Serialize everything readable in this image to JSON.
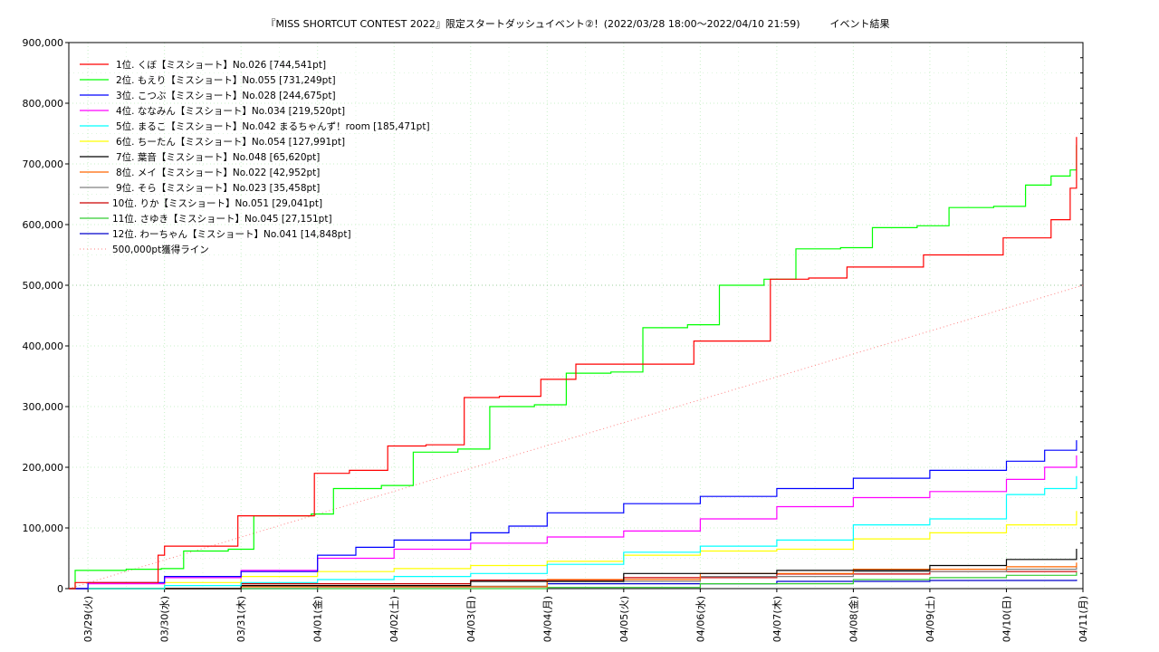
{
  "chart_data": {
    "type": "line",
    "title": "『MISS SHORTCUT CONTEST 2022』限定スタートダッシュイベント②！(2022/03/28 18:00〜2022/04/10 21:59)　　　イベント結果",
    "x_ticks": [
      "03/29(火)",
      "03/30(水)",
      "03/31(木)",
      "04/01(金)",
      "04/02(土)",
      "04/03(日)",
      "04/04(月)",
      "04/05(火)",
      "04/06(水)",
      "04/07(木)",
      "04/08(金)",
      "04/09(土)",
      "04/10(日)",
      "04/11(月)"
    ],
    "y_ticks": [
      "0",
      "100,000",
      "200,000",
      "300,000",
      "400,000",
      "500,000",
      "600,000",
      "700,000",
      "800,000",
      "900,000"
    ],
    "xlim": [
      "2022/03/28 18:00",
      "2022/04/11 00:00"
    ],
    "ylim": [
      0,
      900000
    ],
    "grid": true,
    "legend_position": "top-left",
    "target_line": {
      "name": "500,000pt獲得ライン",
      "value": 500000,
      "color": "#ff8080"
    },
    "series": [
      {
        "name": "1位. くぼ【ミスショート】No.026 [744,541pt]",
        "color": "#ff0000",
        "x": [
          "03/28 18:00",
          "03/28 20:00",
          "03/29 12:00",
          "03/29 22:00",
          "03/30 00:00",
          "03/30 22:00",
          "03/30 23:00",
          "03/31 10:00",
          "03/31 22:00",
          "03/31 23:00",
          "04/01 10:00",
          "04/01 21:00",
          "04/01 22:00",
          "04/02 10:00",
          "04/02 21:00",
          "04/02 22:00",
          "04/03 09:00",
          "04/03 21:00",
          "04/03 22:00",
          "04/04 09:00",
          "04/04 21:00",
          "04/04 22:00",
          "04/05 09:00",
          "04/05 21:00",
          "04/05 22:00",
          "04/06 10:00",
          "04/06 21:00",
          "04/06 22:00",
          "04/07 10:00",
          "04/07 21:00",
          "04/07 22:00",
          "04/08 10:00",
          "04/08 21:00",
          "04/08 22:00",
          "04/09 10:00",
          "04/09 21:00",
          "04/09 23:00",
          "04/10 10:00",
          "04/10 14:00",
          "04/10 18:00",
          "04/10 20:00",
          "04/10 21:59"
        ],
        "y": [
          0,
          10000,
          10000,
          55000,
          70000,
          70000,
          120000,
          120000,
          120000,
          190000,
          195000,
          195000,
          235000,
          237000,
          237000,
          315000,
          317000,
          317000,
          345000,
          370000,
          370000,
          370000,
          370000,
          370000,
          408000,
          408000,
          408000,
          510000,
          512000,
          512000,
          530000,
          530000,
          530000,
          550000,
          550000,
          550000,
          578000,
          578000,
          608000,
          608000,
          660000,
          744541
        ]
      },
      {
        "name": "2位. もえり【ミスショート】No.055 [731,249pt]",
        "color": "#00ff00",
        "x": [
          "03/28 18:00",
          "03/28 20:00",
          "03/29 12:00",
          "03/29 23:00",
          "03/30 06:00",
          "03/30 20:00",
          "03/31 04:00",
          "03/31 22:00",
          "04/01 05:00",
          "04/01 20:00",
          "04/02 06:00",
          "04/02 20:00",
          "04/03 06:00",
          "04/03 20:00",
          "04/04 06:00",
          "04/04 20:00",
          "04/05 06:00",
          "04/05 20:00",
          "04/06 06:00",
          "04/06 20:00",
          "04/07 06:00",
          "04/07 20:00",
          "04/08 06:00",
          "04/08 20:00",
          "04/09 06:00",
          "04/09 20:00",
          "04/10 06:00",
          "04/10 14:00",
          "04/10 20:00",
          "04/10 21:59"
        ],
        "y": [
          0,
          30000,
          32000,
          33000,
          62000,
          65000,
          120000,
          123000,
          165000,
          170000,
          225000,
          230000,
          300000,
          303000,
          355000,
          357000,
          430000,
          435000,
          500000,
          510000,
          560000,
          562000,
          595000,
          598000,
          628000,
          630000,
          665000,
          680000,
          690000,
          731249
        ]
      },
      {
        "name": "3位. こつぶ【ミスショート】No.028 [244,675pt]",
        "color": "#0000ff",
        "x": [
          "03/28 18:00",
          "03/29 00:00",
          "03/30 00:00",
          "03/31 00:00",
          "04/01 00:00",
          "04/01 12:00",
          "04/02 00:00",
          "04/03 00:00",
          "04/03 12:00",
          "04/04 00:00",
          "04/05 00:00",
          "04/06 00:00",
          "04/07 00:00",
          "04/08 00:00",
          "04/09 00:00",
          "04/10 00:00",
          "04/10 12:00",
          "04/10 21:59"
        ],
        "y": [
          0,
          10000,
          20000,
          28000,
          55000,
          68000,
          80000,
          92000,
          103000,
          125000,
          140000,
          152000,
          165000,
          182000,
          195000,
          210000,
          228000,
          244675
        ]
      },
      {
        "name": "4位. ななみん【ミスショート】No.034 [219,520pt]",
        "color": "#ff00ff",
        "x": [
          "03/28 18:00",
          "03/29 00:00",
          "03/30 00:00",
          "03/31 00:00",
          "04/01 00:00",
          "04/02 00:00",
          "04/03 00:00",
          "04/04 00:00",
          "04/05 00:00",
          "04/06 00:00",
          "04/07 00:00",
          "04/08 00:00",
          "04/09 00:00",
          "04/10 00:00",
          "04/10 12:00",
          "04/10 21:59"
        ],
        "y": [
          0,
          8000,
          18000,
          30000,
          50000,
          65000,
          75000,
          85000,
          95000,
          115000,
          135000,
          150000,
          160000,
          180000,
          200000,
          219520
        ]
      },
      {
        "name": "5位. まるこ【ミスショート】No.042 まるちゃんず！room [185,471pt]",
        "color": "#00ffff",
        "x": [
          "03/28 18:00",
          "03/30 00:00",
          "03/31 00:00",
          "04/01 00:00",
          "04/02 00:00",
          "04/03 00:00",
          "04/04 00:00",
          "04/05 00:00",
          "04/06 00:00",
          "04/07 00:00",
          "04/08 00:00",
          "04/09 00:00",
          "04/09 12:00",
          "04/10 00:00",
          "04/10 12:00",
          "04/10 21:59"
        ],
        "y": [
          0,
          5000,
          10000,
          15000,
          20000,
          25000,
          40000,
          60000,
          70000,
          80000,
          105000,
          115000,
          115000,
          155000,
          165000,
          185471
        ]
      },
      {
        "name": "6位. ちーたん【ミスショート】No.054 [127,991pt]",
        "color": "#ffff00",
        "x": [
          "03/28 18:00",
          "03/30 00:00",
          "03/31 00:00",
          "04/01 00:00",
          "04/02 00:00",
          "04/03 00:00",
          "04/04 00:00",
          "04/05 00:00",
          "04/06 00:00",
          "04/07 00:00",
          "04/08 00:00",
          "04/09 00:00",
          "04/10 00:00",
          "04/10 21:59"
        ],
        "y": [
          0,
          10000,
          20000,
          28000,
          33000,
          38000,
          45000,
          55000,
          62000,
          65000,
          82000,
          92000,
          105000,
          127991
        ]
      },
      {
        "name": "7位. 葉音【ミスショート】No.048 [65,620pt]",
        "color": "#000000",
        "x": [
          "03/28 18:00",
          "03/31 00:00",
          "04/03 00:00",
          "04/05 00:00",
          "04/07 00:00",
          "04/09 00:00",
          "04/10 00:00",
          "04/10 21:59"
        ],
        "y": [
          0,
          5000,
          12000,
          25000,
          30000,
          38000,
          48000,
          65620
        ]
      },
      {
        "name": "8位. メイ【ミスショート】No.022 [42,952pt]",
        "color": "#ff6600",
        "x": [
          "03/28 18:00",
          "03/31 00:00",
          "04/04 00:00",
          "04/06 00:00",
          "04/08 00:00",
          "04/10 00:00",
          "04/10 21:59"
        ],
        "y": [
          0,
          3000,
          15000,
          25000,
          32000,
          36000,
          42952
        ]
      },
      {
        "name": "9位. そら【ミスショート】No.023 [35,458pt]",
        "color": "#808080",
        "x": [
          "03/28 18:00",
          "03/31 00:00",
          "04/04 00:00",
          "04/06 00:00",
          "04/08 00:00",
          "04/10 00:00",
          "04/10 21:59"
        ],
        "y": [
          0,
          4000,
          12000,
          20000,
          28000,
          32000,
          35458
        ]
      },
      {
        "name": "10位. りか【ミスショート】No.051 [29,041pt]",
        "color": "#cc0000",
        "x": [
          "03/28 18:00",
          "03/31 00:00",
          "04/03 00:00",
          "04/05 00:00",
          "04/07 00:00",
          "04/09 00:00",
          "04/10 21:59"
        ],
        "y": [
          0,
          8000,
          14000,
          18000,
          24000,
          28000,
          29041
        ]
      },
      {
        "name": "11位. さゆき【ミスショート】No.045 [27,151pt]",
        "color": "#33cc33",
        "x": [
          "03/28 18:00",
          "04/03 00:00",
          "04/04 00:00",
          "04/06 00:00",
          "04/08 00:00",
          "04/09 00:00",
          "04/10 00:00",
          "04/10 21:59"
        ],
        "y": [
          0,
          0,
          2000,
          8000,
          15000,
          18000,
          22000,
          27151
        ]
      },
      {
        "name": "12位. わーちゃん【ミスショート】No.041 [14,848pt]",
        "color": "#0000cc",
        "x": [
          "03/28 18:00",
          "04/01 00:00",
          "04/04 00:00",
          "04/07 00:00",
          "04/09 00:00",
          "04/10 21:59"
        ],
        "y": [
          0,
          3000,
          8000,
          12000,
          13500,
          14848
        ]
      }
    ]
  }
}
